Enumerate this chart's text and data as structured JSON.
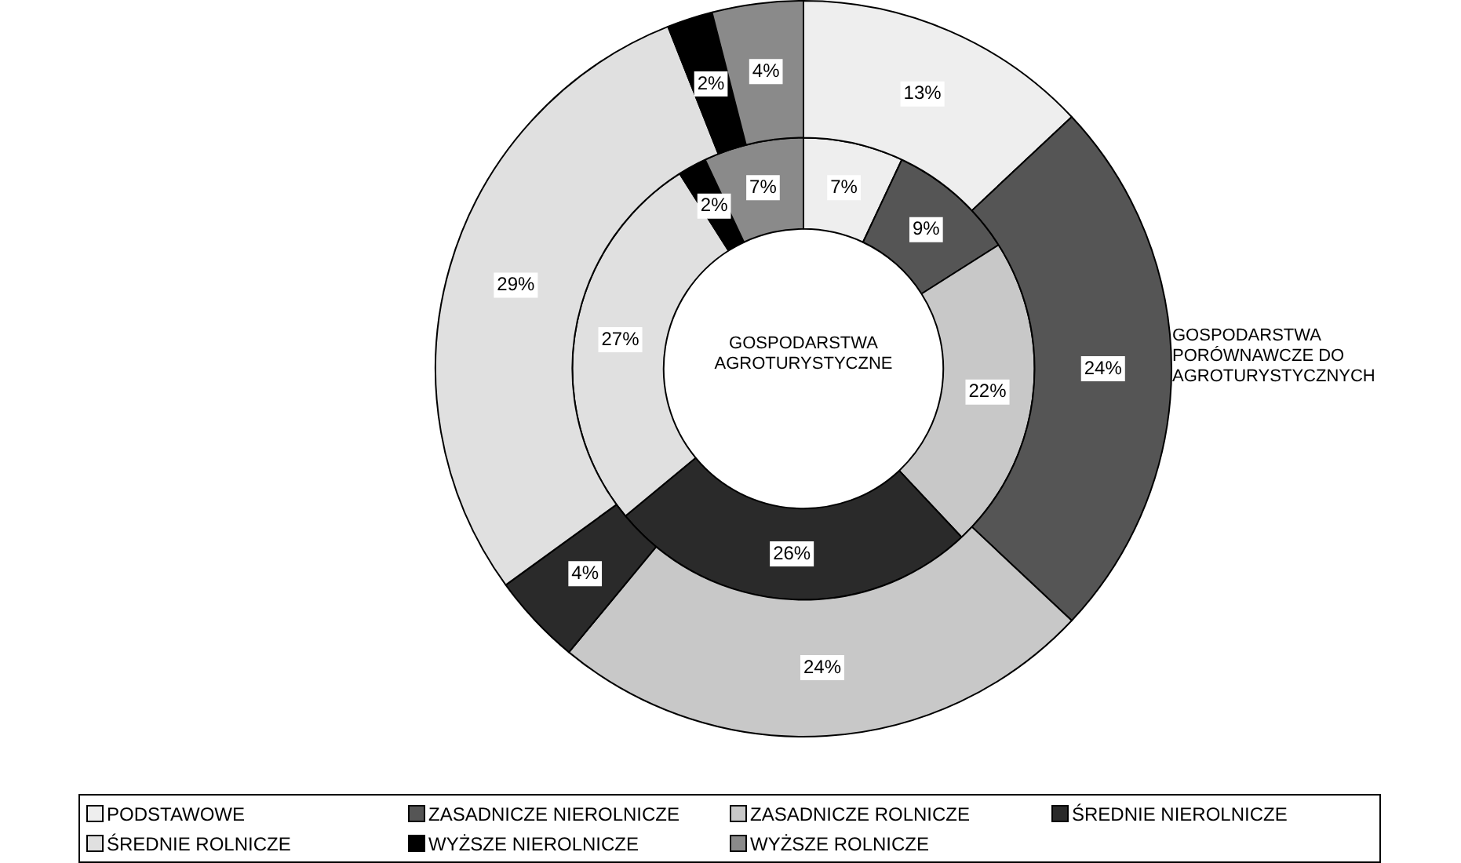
{
  "chart_data": {
    "type": "donut",
    "categories": [
      "PODSTAWOWE",
      "ZASADNICZE NIEROLNICZE",
      "ZASADNICZE ROLNICZE",
      "ŚREDNIE NIEROLNICZE",
      "ŚREDNIE ROLNICZE",
      "WYŻSZE NIEROLNICZE",
      "WYŻSZE ROLNICZE"
    ],
    "colors": [
      "#eeeeee",
      "#555555",
      "#c8c8c8",
      "#2a2a2a",
      "#e0e0e0",
      "#000000",
      "#8a8a8a"
    ],
    "series": [
      {
        "name": "GOSPODARSTWA PORÓWNAWCZE DO AGROTURYSTYCZNYCH",
        "values": [
          13,
          24,
          24,
          4,
          29,
          2,
          4
        ],
        "value_labels": [
          "13%",
          "24%",
          "24%",
          "4%",
          "29%",
          "2%",
          "4%"
        ]
      },
      {
        "name": "GOSPODARSTWA AGROTURYSTYCZNE",
        "values": [
          7,
          9,
          22,
          26,
          27,
          2,
          7
        ],
        "value_labels": [
          "7%",
          "9%",
          "22%",
          "26%",
          "27%",
          "2%",
          "7%"
        ]
      }
    ],
    "legend": "bottom"
  }
}
